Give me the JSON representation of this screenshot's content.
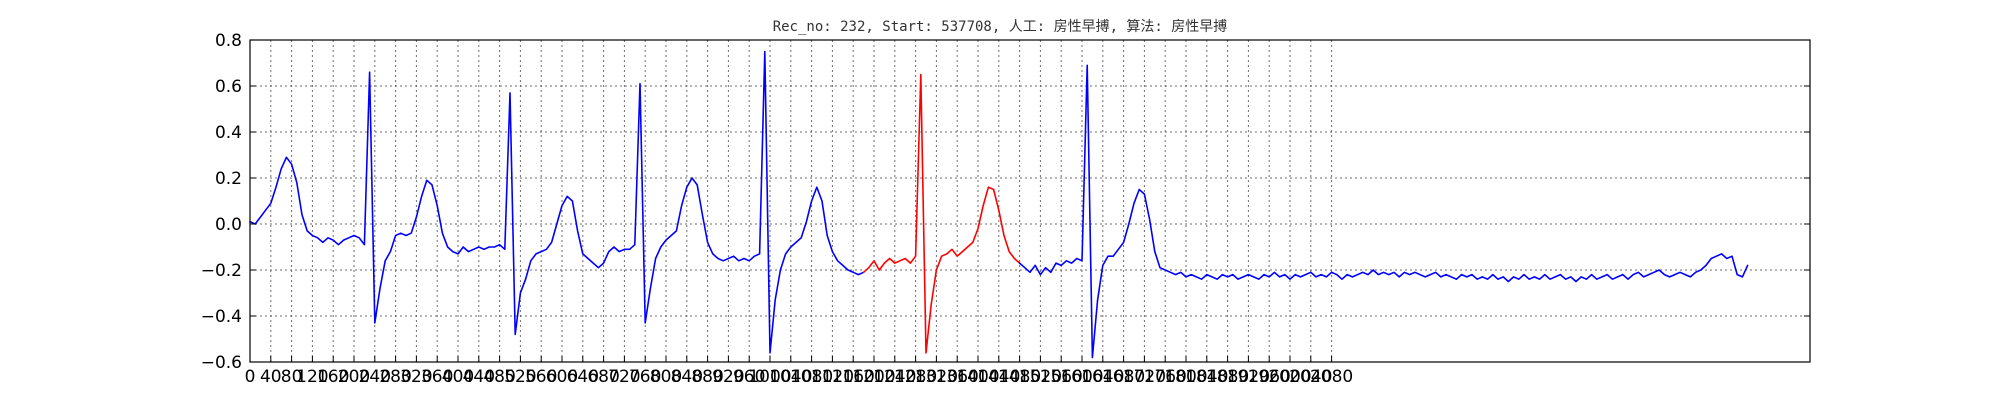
{
  "chart_data": {
    "type": "line",
    "title": "Rec_no: 232, Start: 537708, 人工: 房性早搏, 算法: 房性早搏",
    "xlabel": "",
    "ylabel": "",
    "xlim": [
      0,
      3000
    ],
    "ylim": [
      -0.6,
      0.8
    ],
    "grid": true,
    "yticks": [
      -0.6,
      -0.4,
      -0.2,
      0.0,
      0.2,
      0.4,
      0.6,
      0.8
    ],
    "ytick_labels": [
      "−0.6",
      "−0.4",
      "−0.2",
      "0.0",
      "0.2",
      "0.4",
      "0.6",
      "0.8"
    ],
    "xtick_step": 40,
    "xtick_count": 53,
    "colors": {
      "normal": "#0000ff",
      "highlight": "#ff0000"
    },
    "series": [
      {
        "color": "#0000ff",
        "x": [
          0,
          10,
          20,
          30,
          40,
          50,
          60,
          70,
          80,
          90,
          100,
          110,
          120,
          130,
          140,
          150,
          160,
          170,
          180,
          190,
          200,
          210,
          220,
          230,
          240,
          250,
          260,
          270,
          280,
          290,
          300,
          310,
          320,
          330,
          340,
          350,
          360,
          370,
          380,
          390,
          400,
          410,
          420,
          430,
          440,
          450,
          460,
          470,
          480,
          490,
          500,
          510,
          520,
          530,
          540,
          550,
          560,
          570,
          580,
          590,
          600,
          610,
          620,
          630,
          640,
          650,
          660,
          670,
          680,
          690,
          700,
          710,
          720,
          730,
          740,
          750,
          760,
          770,
          780,
          790,
          800,
          810,
          820,
          830,
          840,
          850,
          860,
          870,
          880,
          890,
          900,
          910,
          920,
          930,
          940,
          950,
          960,
          970,
          980,
          990,
          1000,
          1010,
          1020,
          1030,
          1040,
          1050,
          1060,
          1070,
          1080,
          1090,
          1100,
          1110,
          1120,
          1130,
          1140,
          1150,
          1160,
          1170,
          1180
        ],
        "y": [
          0.01,
          0.0,
          0.03,
          0.06,
          0.09,
          0.16,
          0.24,
          0.29,
          0.26,
          0.18,
          0.04,
          -0.03,
          -0.05,
          -0.06,
          -0.08,
          -0.06,
          -0.07,
          -0.09,
          -0.07,
          -0.06,
          -0.05,
          -0.06,
          -0.09,
          0.66,
          -0.43,
          -0.28,
          -0.16,
          -0.12,
          -0.05,
          -0.04,
          -0.05,
          -0.04,
          0.03,
          0.12,
          0.19,
          0.17,
          0.08,
          -0.04,
          -0.1,
          -0.12,
          -0.13,
          -0.1,
          -0.12,
          -0.11,
          -0.1,
          -0.11,
          -0.1,
          -0.1,
          -0.09,
          -0.11,
          0.57,
          -0.48,
          -0.3,
          -0.24,
          -0.16,
          -0.13,
          -0.12,
          -0.11,
          -0.08,
          0.0,
          0.08,
          0.12,
          0.1,
          -0.03,
          -0.13,
          -0.15,
          -0.17,
          -0.19,
          -0.17,
          -0.12,
          -0.1,
          -0.12,
          -0.11,
          -0.11,
          -0.09,
          0.61,
          -0.43,
          -0.28,
          -0.15,
          -0.1,
          -0.07,
          -0.05,
          -0.03,
          0.08,
          0.16,
          0.2,
          0.17,
          0.04,
          -0.08,
          -0.13,
          -0.15,
          -0.16,
          -0.15,
          -0.14,
          -0.16,
          -0.15,
          -0.16,
          -0.14,
          -0.13,
          0.75,
          -0.56,
          -0.33,
          -0.2,
          -0.13,
          -0.1,
          -0.08,
          -0.06,
          0.01,
          0.1,
          0.16,
          0.1,
          -0.05,
          -0.12,
          -0.16,
          -0.18,
          -0.2,
          -0.21,
          -0.22,
          -0.21
        ]
      },
      {
        "color": "#ff0000",
        "x": [
          1180,
          1190,
          1200,
          1210,
          1220,
          1230,
          1240,
          1250,
          1260,
          1270,
          1280,
          1290,
          1300,
          1310,
          1320,
          1330,
          1340,
          1350,
          1360,
          1370,
          1380,
          1390,
          1400,
          1410,
          1420,
          1430,
          1440,
          1450,
          1460,
          1470,
          1480
        ],
        "y": [
          -0.21,
          -0.19,
          -0.16,
          -0.2,
          -0.17,
          -0.15,
          -0.17,
          -0.16,
          -0.15,
          -0.17,
          -0.14,
          0.65,
          -0.56,
          -0.35,
          -0.2,
          -0.14,
          -0.13,
          -0.11,
          -0.14,
          -0.12,
          -0.1,
          -0.08,
          -0.02,
          0.08,
          0.16,
          0.15,
          0.06,
          -0.05,
          -0.12,
          -0.15,
          -0.17
        ]
      },
      {
        "color": "#0000ff",
        "x": [
          1480,
          1490,
          1500,
          1510,
          1520,
          1530,
          1540,
          1550,
          1560,
          1570,
          1580,
          1590,
          1600,
          1610,
          1620,
          1630,
          1640,
          1650,
          1660,
          1670,
          1680,
          1690,
          1700,
          1710,
          1720,
          1730,
          1740,
          1750,
          1760,
          1770,
          1780,
          1790,
          1800,
          1810,
          1820,
          1830,
          1840,
          1850,
          1860,
          1870,
          1880,
          1890,
          1900,
          1910,
          1920,
          1930,
          1940,
          1950,
          1960,
          1970,
          1980,
          1990,
          2000,
          2010,
          2020,
          2030,
          2040,
          2050,
          2060,
          2070,
          2080,
          2090,
          2100,
          2110,
          2120,
          2130,
          2140,
          2150,
          2160,
          2170,
          2180,
          2190,
          2200,
          2210,
          2220,
          2230,
          2240,
          2250,
          2260,
          2270,
          2280,
          2290,
          2300,
          2310,
          2320,
          2330,
          2340,
          2350,
          2360,
          2370,
          2380,
          2390,
          2400,
          2410,
          2420,
          2430,
          2440,
          2450,
          2460,
          2470,
          2480,
          2490,
          2500,
          2510,
          2520,
          2530,
          2540,
          2550,
          2560,
          2570,
          2580,
          2590,
          2600,
          2610,
          2620,
          2630,
          2640,
          2650,
          2660,
          2670,
          2680,
          2690,
          2700,
          2710,
          2720,
          2730,
          2740,
          2750,
          2760,
          2770,
          2780,
          2790,
          2800,
          2810,
          2820,
          2830,
          2840,
          2850,
          2860,
          2870,
          2880
        ],
        "y": [
          -0.17,
          -0.19,
          -0.21,
          -0.18,
          -0.22,
          -0.19,
          -0.21,
          -0.17,
          -0.18,
          -0.16,
          -0.17,
          -0.15,
          -0.16,
          0.69,
          -0.58,
          -0.33,
          -0.18,
          -0.14,
          -0.14,
          -0.11,
          -0.08,
          0.0,
          0.09,
          0.15,
          0.13,
          0.02,
          -0.12,
          -0.19,
          -0.2,
          -0.21,
          -0.22,
          -0.21,
          -0.23,
          -0.22,
          -0.23,
          -0.24,
          -0.22,
          -0.23,
          -0.24,
          -0.22,
          -0.23,
          -0.22,
          -0.24,
          -0.23,
          -0.22,
          -0.23,
          -0.24,
          -0.22,
          -0.23,
          -0.21,
          -0.23,
          -0.22,
          -0.24,
          -0.22,
          -0.23,
          -0.22,
          -0.21,
          -0.23,
          -0.22,
          -0.23,
          -0.21,
          -0.22,
          -0.24,
          -0.22,
          -0.23,
          -0.22,
          -0.21,
          -0.22,
          -0.2,
          -0.22,
          -0.21,
          -0.22,
          -0.21,
          -0.23,
          -0.21,
          -0.22,
          -0.21,
          -0.22,
          -0.23,
          -0.22,
          -0.21,
          -0.23,
          -0.22,
          -0.23,
          -0.24,
          -0.22,
          -0.23,
          -0.22,
          -0.24,
          -0.23,
          -0.24,
          -0.22,
          -0.24,
          -0.23,
          -0.25,
          -0.23,
          -0.24,
          -0.22,
          -0.24,
          -0.23,
          -0.24,
          -0.22,
          -0.24,
          -0.23,
          -0.22,
          -0.24,
          -0.23,
          -0.25,
          -0.23,
          -0.24,
          -0.22,
          -0.24,
          -0.23,
          -0.22,
          -0.24,
          -0.23,
          -0.22,
          -0.24,
          -0.22,
          -0.21,
          -0.23,
          -0.22,
          -0.21,
          -0.2,
          -0.22,
          -0.23,
          -0.22,
          -0.21,
          -0.22,
          -0.23,
          -0.21,
          -0.2,
          -0.18,
          -0.15,
          -0.14,
          -0.13,
          -0.15,
          -0.14,
          -0.22,
          -0.23,
          -0.18
        ]
      }
    ]
  }
}
